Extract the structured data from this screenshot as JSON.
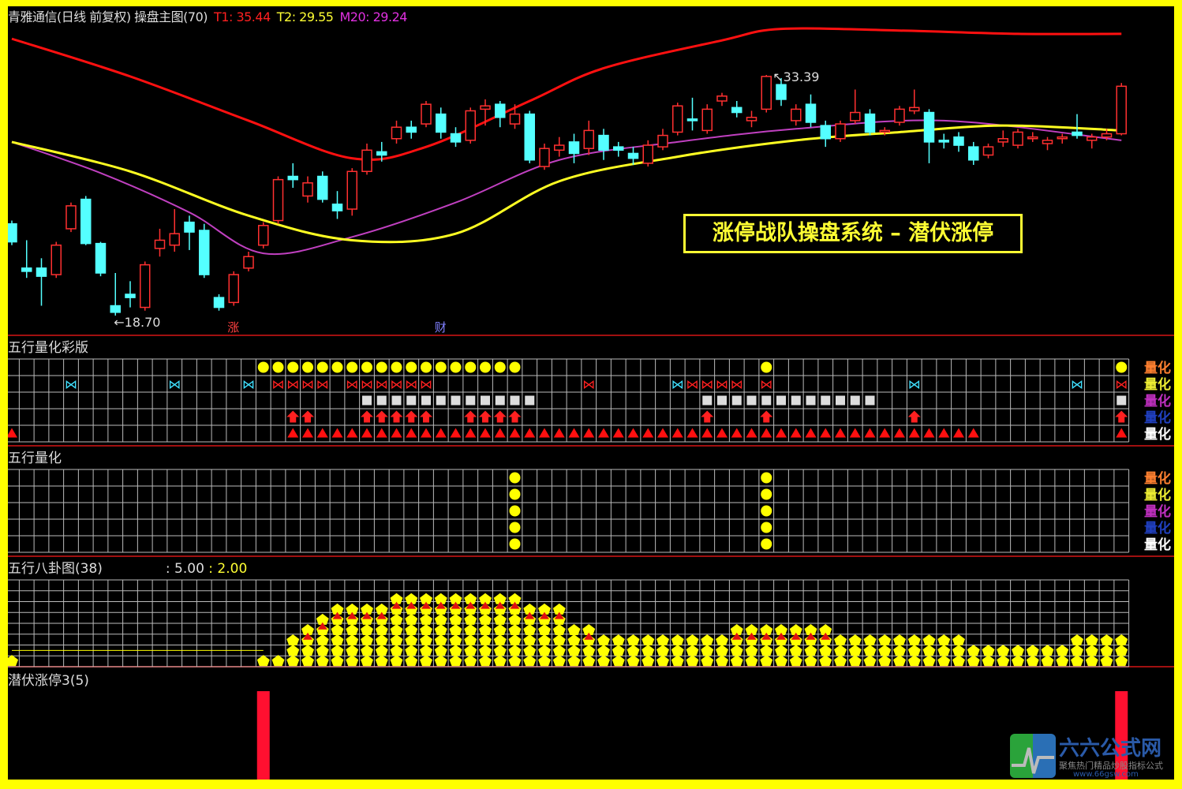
{
  "header": {
    "title": "青雅通信(日线 前复权) 操盘主图(70)",
    "t1": "T1: 35.44",
    "t2": "T2: 29.55",
    "m20": "M20: 29.24"
  },
  "colors": {
    "up": "#ff3030",
    "down": "#54ffff",
    "upper_band": "#ff1010",
    "ma_yellow": "#ffff22",
    "ma_purple": "#c040c0",
    "border": "#ffff00",
    "separator": "#a01010"
  },
  "main_chart": {
    "type": "candlestick",
    "high_label": "33.39",
    "low_label": "18.70",
    "marker_zhang": "涨",
    "marker_cai": "财",
    "banner": "涨停战队操盘系统 – 潜伏涨停",
    "candles": [
      [
        24.3,
        23.2,
        24.5,
        23.0
      ],
      [
        21.6,
        21.4,
        23.3,
        21.0
      ],
      [
        21.6,
        21.1,
        22.2,
        19.3
      ],
      [
        21.2,
        23.0,
        23.2,
        21.0
      ],
      [
        24.0,
        25.4,
        25.6,
        23.8
      ],
      [
        25.8,
        23.1,
        26.0,
        23.0
      ],
      [
        23.1,
        21.3,
        23.2,
        21.1
      ],
      [
        19.3,
        18.9,
        21.3,
        18.7
      ],
      [
        20.0,
        19.8,
        20.8,
        19.2
      ],
      [
        19.2,
        21.8,
        22.0,
        19.0
      ],
      [
        22.8,
        23.3,
        24.0,
        22.3
      ],
      [
        23.0,
        23.7,
        25.2,
        22.6
      ],
      [
        24.4,
        23.8,
        24.8,
        22.7
      ],
      [
        23.9,
        21.2,
        24.3,
        21.0
      ],
      [
        19.8,
        19.2,
        20.0,
        19.0
      ],
      [
        19.5,
        21.2,
        21.4,
        19.3
      ],
      [
        21.6,
        22.3,
        22.6,
        21.4
      ],
      [
        23.0,
        24.2,
        24.4,
        22.8
      ],
      [
        24.5,
        27.0,
        27.2,
        24.3
      ],
      [
        27.2,
        27.0,
        28.0,
        26.5
      ],
      [
        26.0,
        26.8,
        27.2,
        25.6
      ],
      [
        27.2,
        25.8,
        27.5,
        25.6
      ],
      [
        25.5,
        25.1,
        26.3,
        24.6
      ],
      [
        25.2,
        27.5,
        27.7,
        24.8
      ],
      [
        27.5,
        28.8,
        29.2,
        27.3
      ],
      [
        28.7,
        28.5,
        29.3,
        28.1
      ],
      [
        29.5,
        30.2,
        30.6,
        29.2
      ],
      [
        30.2,
        29.9,
        30.6,
        29.5
      ],
      [
        30.4,
        31.6,
        31.8,
        30.2
      ],
      [
        31.0,
        29.9,
        31.4,
        29.5
      ],
      [
        29.8,
        29.3,
        30.2,
        29.0
      ],
      [
        29.4,
        31.2,
        31.4,
        29.2
      ],
      [
        31.3,
        31.5,
        31.9,
        30.3
      ],
      [
        31.6,
        30.8,
        31.8,
        30.2
      ],
      [
        30.4,
        31.0,
        31.6,
        30.1
      ],
      [
        31.0,
        28.2,
        31.2,
        28.0
      ],
      [
        27.8,
        28.9,
        29.2,
        27.6
      ],
      [
        28.8,
        29.1,
        29.6,
        28.4
      ],
      [
        29.3,
        28.6,
        29.8,
        28.0
      ],
      [
        28.9,
        30.0,
        30.6,
        28.5
      ],
      [
        29.7,
        28.8,
        30.1,
        28.2
      ],
      [
        29.0,
        28.8,
        29.3,
        28.4
      ],
      [
        28.6,
        28.3,
        29.0,
        27.9
      ],
      [
        28.0,
        29.1,
        29.4,
        27.8
      ],
      [
        29.0,
        29.7,
        30.1,
        28.8
      ],
      [
        29.9,
        31.5,
        31.7,
        29.7
      ],
      [
        30.7,
        30.6,
        32.0,
        30.0
      ],
      [
        30.0,
        31.3,
        31.6,
        29.8
      ],
      [
        31.8,
        32.1,
        32.3,
        31.5
      ],
      [
        31.4,
        31.1,
        31.8,
        30.8
      ],
      [
        30.6,
        30.8,
        31.2,
        30.2
      ],
      [
        31.3,
        33.3,
        33.39,
        31.1
      ],
      [
        32.8,
        31.9,
        33.2,
        31.5
      ],
      [
        30.6,
        31.3,
        31.6,
        30.3
      ],
      [
        31.6,
        30.5,
        32.2,
        30.2
      ],
      [
        30.3,
        29.5,
        30.6,
        29.0
      ],
      [
        29.5,
        30.4,
        30.6,
        29.3
      ],
      [
        30.6,
        31.1,
        32.5,
        30.4
      ],
      [
        31.0,
        29.9,
        31.3,
        29.7
      ],
      [
        29.9,
        30.0,
        30.2,
        29.7
      ],
      [
        30.5,
        31.3,
        31.5,
        30.3
      ],
      [
        31.2,
        31.4,
        32.5,
        31.0
      ],
      [
        31.1,
        29.3,
        31.3,
        28.0
      ],
      [
        29.4,
        29.3,
        29.8,
        28.9
      ],
      [
        29.6,
        29.1,
        29.9,
        28.7
      ],
      [
        29.0,
        28.2,
        29.3,
        27.9
      ],
      [
        28.5,
        29.0,
        29.2,
        28.3
      ],
      [
        29.3,
        29.5,
        30.0,
        29.0
      ],
      [
        29.1,
        29.9,
        30.1,
        28.9
      ],
      [
        29.5,
        29.6,
        29.9,
        29.3
      ],
      [
        29.2,
        29.4,
        29.6,
        28.8
      ],
      [
        29.5,
        29.6,
        29.8,
        29.2
      ],
      [
        29.9,
        29.7,
        31.0,
        29.5
      ],
      [
        29.4,
        29.6,
        29.8,
        28.9
      ],
      [
        29.6,
        29.8,
        30.1,
        29.4
      ],
      [
        29.8,
        32.7,
        32.9,
        29.7
      ]
    ],
    "upper_band": [
      [
        0,
        35.6
      ],
      [
        8,
        33.3
      ],
      [
        16,
        30.6
      ],
      [
        23,
        28.3
      ],
      [
        28,
        29.0
      ],
      [
        35,
        31.8
      ],
      [
        40,
        33.8
      ],
      [
        48,
        35.5
      ],
      [
        52,
        36.2
      ],
      [
        60,
        36.1
      ],
      [
        68,
        35.9
      ],
      [
        75,
        35.9
      ]
    ],
    "ma_yellow": [
      [
        0,
        29.3
      ],
      [
        8,
        27.5
      ],
      [
        16,
        24.8
      ],
      [
        23,
        23.3
      ],
      [
        30,
        23.7
      ],
      [
        37,
        26.9
      ],
      [
        45,
        28.4
      ],
      [
        53,
        29.4
      ],
      [
        60,
        29.9
      ],
      [
        67,
        30.3
      ],
      [
        75,
        30.0
      ]
    ],
    "ma_purple": [
      [
        0,
        29.3
      ],
      [
        6,
        27.4
      ],
      [
        12,
        25.0
      ],
      [
        17,
        22.5
      ],
      [
        23,
        23.5
      ],
      [
        30,
        25.6
      ],
      [
        37,
        28.2
      ],
      [
        45,
        29.3
      ],
      [
        53,
        30.1
      ],
      [
        63,
        30.6
      ],
      [
        75,
        29.4
      ]
    ]
  },
  "panel_wuxing_color": {
    "title": "五行量化彩版",
    "legend": [
      {
        "label": "量化",
        "color": "#ff8030"
      },
      {
        "label": "量化",
        "color": "#eeee33"
      },
      {
        "label": "量化",
        "color": "#c030c0"
      },
      {
        "label": "量化",
        "color": "#2040c0"
      },
      {
        "label": "量化",
        "color": "#ffffff"
      }
    ],
    "circles": [
      17,
      18,
      19,
      20,
      21,
      22,
      23,
      24,
      25,
      26,
      27,
      28,
      29,
      30,
      31,
      32,
      33,
      34,
      51,
      75
    ],
    "butterflies_cyan": [
      4,
      11,
      16,
      45,
      61,
      72
    ],
    "butterflies_red": [
      18,
      19,
      20,
      21,
      23,
      24,
      25,
      26,
      27,
      28,
      39,
      46,
      47,
      48,
      49,
      51,
      75
    ],
    "squares": [
      24,
      25,
      26,
      27,
      28,
      29,
      30,
      31,
      32,
      33,
      34,
      35,
      47,
      48,
      49,
      50,
      51,
      52,
      53,
      54,
      55,
      56,
      57,
      58,
      75
    ],
    "arrows": [
      19,
      20,
      24,
      25,
      26,
      27,
      28,
      31,
      32,
      33,
      34,
      47,
      51,
      61,
      75
    ],
    "triangles_from": 19,
    "triangles_to": 65,
    "triangles_extra": [
      0,
      75
    ]
  },
  "panel_wuxing": {
    "title": "五行量化",
    "legend": [
      {
        "label": "量化",
        "color": "#ff8030"
      },
      {
        "label": "量化",
        "color": "#eeee33"
      },
      {
        "label": "量化",
        "color": "#c030c0"
      },
      {
        "label": "量化",
        "color": "#2040c0"
      },
      {
        "label": "量化",
        "color": "#ffffff"
      }
    ],
    "circle_columns": [
      34,
      51
    ]
  },
  "panel_bagua": {
    "title": "五行八卦图(38)",
    "value1": ": 5.00",
    "value2": ": 2.00",
    "counts": [
      1,
      0,
      0,
      0,
      0,
      0,
      0,
      0,
      0,
      0,
      0,
      0,
      0,
      0,
      0,
      0,
      0,
      1,
      1,
      3,
      4,
      5,
      6,
      6,
      6,
      6,
      7,
      7,
      7,
      7,
      7,
      7,
      7,
      7,
      7,
      6,
      6,
      6,
      4,
      4,
      3,
      3,
      3,
      3,
      3,
      3,
      3,
      3,
      3,
      4,
      4,
      4,
      4,
      4,
      4,
      4,
      3,
      3,
      3,
      3,
      3,
      3,
      3,
      3,
      3,
      2,
      2,
      2,
      2,
      2,
      2,
      2,
      3,
      3,
      3,
      3
    ],
    "red_marks": [
      20,
      21,
      22,
      23,
      24,
      25,
      26,
      27,
      28,
      29,
      30,
      31,
      32,
      33,
      34,
      35,
      36,
      37,
      39,
      49,
      50,
      51,
      52,
      53,
      54,
      55
    ]
  },
  "panel_qianfu": {
    "title": "潜伏涨停3(5)",
    "bar_columns": [
      17,
      75
    ]
  },
  "logo": {
    "name": "六六公式网",
    "tagline": "聚焦热门精品炒股指标公式",
    "url": "www.66gsw.com"
  }
}
